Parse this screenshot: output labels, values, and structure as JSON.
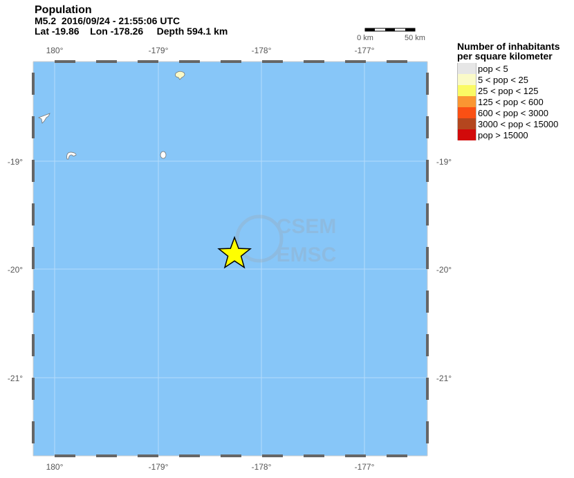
{
  "header": {
    "title": "Population",
    "event": "M5.2  2016/09/24 - 21:55:06 UTC",
    "location": "Lat -19.86    Lon -178.26     Depth 594.1 km"
  },
  "map": {
    "ocean_color": "#87c6f8",
    "lon_ticks": [
      "180°",
      "-179°",
      "-178°",
      "-177°"
    ],
    "lat_ticks": [
      "-19°",
      "-20°",
      "-21°"
    ],
    "epicenter": {
      "lat": -19.86,
      "lon": -178.26,
      "icon": "star-icon",
      "color": "#ffff00"
    },
    "scale_bar": {
      "left_label": "0 km",
      "right_label": "50 km"
    },
    "watermark": {
      "line1": "CSEM",
      "line2": "EMSC"
    }
  },
  "legend": {
    "title_line1": "Number of inhabitants",
    "title_line2": "per square kilometer",
    "items": [
      {
        "label": "pop < 5",
        "color": "#e6e6e6"
      },
      {
        "label": "5 < pop < 25",
        "color": "#fafac8"
      },
      {
        "label": "25 < pop < 125",
        "color": "#fafa64"
      },
      {
        "label": "125 < pop < 600",
        "color": "#fa9632"
      },
      {
        "label": "600 < pop < 3000",
        "color": "#fa5014"
      },
      {
        "label": "3000 < pop < 15000",
        "color": "#b4461e"
      },
      {
        "label": "pop > 15000",
        "color": "#d20a0a"
      }
    ]
  }
}
